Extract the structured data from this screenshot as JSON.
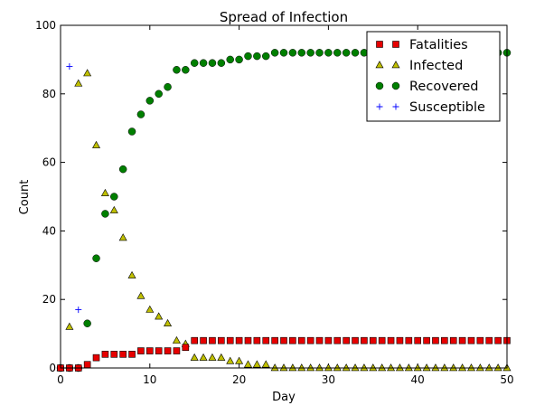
{
  "chart_data": {
    "type": "scatter",
    "title": "Spread of Infection",
    "xlabel": "Day",
    "ylabel": "Count",
    "xlim": [
      0,
      50
    ],
    "ylim": [
      0,
      100
    ],
    "xticks": [
      0,
      10,
      20,
      30,
      40,
      50
    ],
    "yticks": [
      0,
      20,
      40,
      60,
      80,
      100
    ],
    "grid": false,
    "legend_position": "top-right",
    "series": [
      {
        "name": "Fatalities",
        "marker": "square",
        "color": "#e60000",
        "x": [
          0,
          1,
          2,
          3,
          4,
          5,
          6,
          7,
          8,
          9,
          10,
          11,
          12,
          13,
          14,
          15,
          16,
          17,
          18,
          19,
          20,
          21,
          22,
          23,
          24,
          25,
          26,
          27,
          28,
          29,
          30,
          31,
          32,
          33,
          34,
          35,
          36,
          37,
          38,
          39,
          40,
          41,
          42,
          43,
          44,
          45,
          46,
          47,
          48,
          49,
          50
        ],
        "y": [
          0,
          0,
          0,
          1,
          3,
          4,
          4,
          4,
          4,
          5,
          5,
          5,
          5,
          5,
          6,
          8,
          8,
          8,
          8,
          8,
          8,
          8,
          8,
          8,
          8,
          8,
          8,
          8,
          8,
          8,
          8,
          8,
          8,
          8,
          8,
          8,
          8,
          8,
          8,
          8,
          8,
          8,
          8,
          8,
          8,
          8,
          8,
          8,
          8,
          8,
          8
        ]
      },
      {
        "name": "Infected",
        "marker": "triangle",
        "color": "#bfbf00",
        "x": [
          0,
          1,
          2,
          3,
          4,
          5,
          6,
          7,
          8,
          9,
          10,
          11,
          12,
          13,
          14,
          15,
          16,
          17,
          18,
          19,
          20,
          21,
          22,
          23,
          24,
          25,
          26,
          27,
          28,
          29,
          30,
          31,
          32,
          33,
          34,
          35,
          36,
          37,
          38,
          39,
          40,
          41,
          42,
          43,
          44,
          45,
          46,
          47,
          48,
          49,
          50
        ],
        "y": [
          0,
          12,
          83,
          86,
          65,
          51,
          46,
          38,
          27,
          21,
          17,
          15,
          13,
          8,
          7,
          3,
          3,
          3,
          3,
          2,
          2,
          1,
          1,
          1,
          0,
          0,
          0,
          0,
          0,
          0,
          0,
          0,
          0,
          0,
          0,
          0,
          0,
          0,
          0,
          0,
          0,
          0,
          0,
          0,
          0,
          0,
          0,
          0,
          0,
          0,
          0
        ]
      },
      {
        "name": "Recovered",
        "marker": "circle",
        "color": "#007f00",
        "x": [
          0,
          1,
          2,
          3,
          4,
          5,
          6,
          7,
          8,
          9,
          10,
          11,
          12,
          13,
          14,
          15,
          16,
          17,
          18,
          19,
          20,
          21,
          22,
          23,
          24,
          25,
          26,
          27,
          28,
          29,
          30,
          31,
          32,
          33,
          34,
          35,
          36,
          37,
          38,
          39,
          40,
          41,
          42,
          43,
          44,
          45,
          46,
          47,
          48,
          49,
          50
        ],
        "y": [
          0,
          0,
          0,
          13,
          32,
          45,
          50,
          58,
          69,
          74,
          78,
          80,
          82,
          87,
          87,
          89,
          89,
          89,
          89,
          90,
          90,
          91,
          91,
          91,
          92,
          92,
          92,
          92,
          92,
          92,
          92,
          92,
          92,
          92,
          92,
          92,
          92,
          92,
          92,
          92,
          92,
          92,
          92,
          92,
          92,
          92,
          92,
          92,
          92,
          92,
          92
        ]
      },
      {
        "name": "Susceptible",
        "marker": "plus",
        "color": "#0000ff",
        "x": [
          1,
          2
        ],
        "y": [
          88,
          17
        ]
      }
    ]
  }
}
